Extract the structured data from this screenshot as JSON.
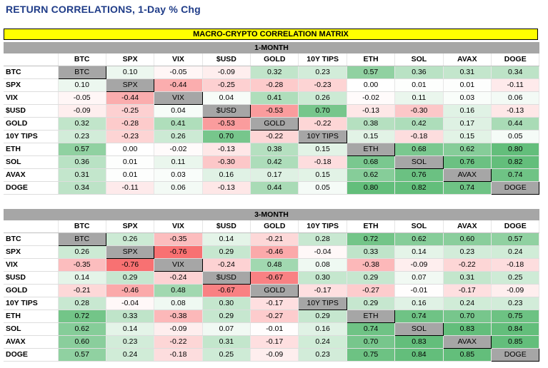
{
  "title": "RETURN CORRELATIONS, 1-Day % Chg",
  "banner": "MACRO-CRYPTO CORRELATION MATRIX",
  "assets": [
    "BTC",
    "SPX",
    "VIX",
    "$USD",
    "GOLD",
    "10Y TIPS",
    "ETH",
    "SOL",
    "AVAX",
    "DOGE"
  ],
  "colors": {
    "positive": "#63be7b",
    "negative": "#f8696b",
    "neutral": "#ffffff",
    "diagonal": "#a6a6a6",
    "banner": "#ffff00",
    "title": "#1f3c88"
  },
  "matrices": [
    {
      "title": "1-MONTH",
      "values": [
        [
          null,
          "0.10",
          "-0.05",
          "-0.09",
          "0.32",
          "0.23",
          "0.57",
          "0.36",
          "0.31",
          "0.34"
        ],
        [
          "0.10",
          null,
          "-0.44",
          "-0.25",
          "-0.28",
          "-0.23",
          "0.00",
          "0.01",
          "0.01",
          "-0.11"
        ],
        [
          "-0.05",
          "-0.44",
          null,
          "0.04",
          "0.41",
          "0.26",
          "-0.02",
          "0.11",
          "0.03",
          "0.06"
        ],
        [
          "-0.09",
          "-0.25",
          "0.04",
          null,
          "-0.53",
          "0.70",
          "-0.13",
          "-0.30",
          "0.16",
          "-0.13"
        ],
        [
          "0.32",
          "-0.28",
          "0.41",
          "-0.53",
          null,
          "-0.22",
          "0.38",
          "0.42",
          "0.17",
          "0.44"
        ],
        [
          "0.23",
          "-0.23",
          "0.26",
          "0.70",
          "-0.22",
          null,
          "0.15",
          "-0.18",
          "0.15",
          "0.05"
        ],
        [
          "0.57",
          "0.00",
          "-0.02",
          "-0.13",
          "0.38",
          "0.15",
          null,
          "0.68",
          "0.62",
          "0.80"
        ],
        [
          "0.36",
          "0.01",
          "0.11",
          "-0.30",
          "0.42",
          "-0.18",
          "0.68",
          null,
          "0.76",
          "0.82"
        ],
        [
          "0.31",
          "0.01",
          "0.03",
          "0.16",
          "0.17",
          "0.15",
          "0.62",
          "0.76",
          null,
          "0.74"
        ],
        [
          "0.34",
          "-0.11",
          "0.06",
          "-0.13",
          "0.44",
          "0.05",
          "0.80",
          "0.82",
          "0.74",
          null
        ]
      ]
    },
    {
      "title": "3-MONTH",
      "values": [
        [
          null,
          "0.26",
          "-0.35",
          "0.14",
          "-0.21",
          "0.28",
          "0.72",
          "0.62",
          "0.60",
          "0.57"
        ],
        [
          "0.26",
          null,
          "-0.76",
          "0.29",
          "-0.46",
          "-0.04",
          "0.33",
          "0.14",
          "0.23",
          "0.24"
        ],
        [
          "-0.35",
          "-0.76",
          null,
          "-0.24",
          "0.48",
          "0.08",
          "-0.38",
          "-0.09",
          "-0.22",
          "-0.18"
        ],
        [
          "0.14",
          "0.29",
          "-0.24",
          null,
          "-0.67",
          "0.30",
          "0.29",
          "0.07",
          "0.31",
          "0.25"
        ],
        [
          "-0.21",
          "-0.46",
          "0.48",
          "-0.67",
          null,
          "-0.17",
          "-0.27",
          "-0.01",
          "-0.17",
          "-0.09"
        ],
        [
          "0.28",
          "-0.04",
          "0.08",
          "0.30",
          "-0.17",
          null,
          "0.29",
          "0.16",
          "0.24",
          "0.23"
        ],
        [
          "0.72",
          "0.33",
          "-0.38",
          "0.29",
          "-0.27",
          "0.29",
          null,
          "0.74",
          "0.70",
          "0.75"
        ],
        [
          "0.62",
          "0.14",
          "-0.09",
          "0.07",
          "-0.01",
          "0.16",
          "0.74",
          null,
          "0.83",
          "0.84"
        ],
        [
          "0.60",
          "0.23",
          "-0.22",
          "0.31",
          "-0.17",
          "0.24",
          "0.70",
          "0.83",
          null,
          "0.85"
        ],
        [
          "0.57",
          "0.24",
          "-0.18",
          "0.25",
          "-0.09",
          "0.23",
          "0.75",
          "0.84",
          "0.85",
          null
        ]
      ]
    }
  ]
}
